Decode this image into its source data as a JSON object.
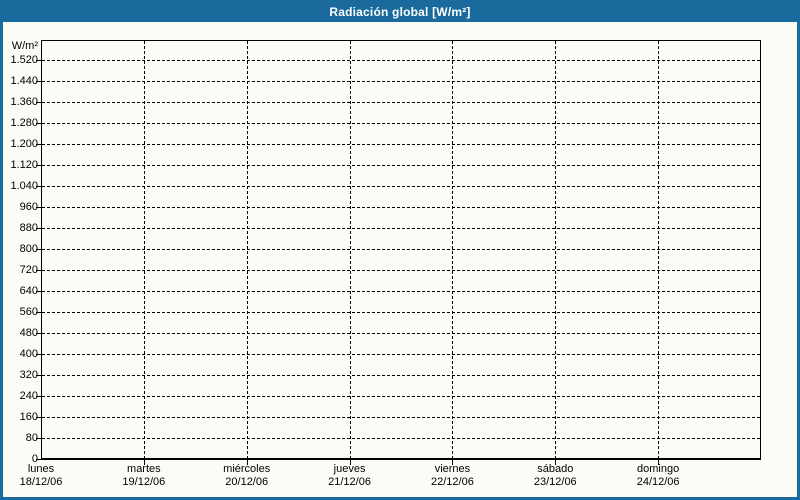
{
  "header": {
    "title": "Radiación global [W/m²]"
  },
  "colors": {
    "accent_blue": "#1B6A9D",
    "background": "#FCFCF7",
    "grid": "#000000",
    "title_text": "#FFFFFF",
    "label_text": "#000000"
  },
  "chart_data": {
    "type": "line",
    "title": "Radiación global [W/m²]",
    "y_unit": "W/m²",
    "ylabel": "W/m²",
    "xlabel": "",
    "ylim": [
      0,
      1600
    ],
    "y_tick_step": 80,
    "grid": "dashed",
    "legend": "none",
    "y_ticks": [
      {
        "value": 0,
        "label": "0"
      },
      {
        "value": 80,
        "label": "80"
      },
      {
        "value": 160,
        "label": "160"
      },
      {
        "value": 240,
        "label": "240"
      },
      {
        "value": 320,
        "label": "320"
      },
      {
        "value": 400,
        "label": "400"
      },
      {
        "value": 480,
        "label": "480"
      },
      {
        "value": 560,
        "label": "560"
      },
      {
        "value": 640,
        "label": "640"
      },
      {
        "value": 720,
        "label": "720"
      },
      {
        "value": 800,
        "label": "800"
      },
      {
        "value": 880,
        "label": "880"
      },
      {
        "value": 960,
        "label": "960"
      },
      {
        "value": 1040,
        "label": "1.040"
      },
      {
        "value": 1120,
        "label": "1.120"
      },
      {
        "value": 1200,
        "label": "1.200"
      },
      {
        "value": 1280,
        "label": "1.280"
      },
      {
        "value": 1360,
        "label": "1.360"
      },
      {
        "value": 1440,
        "label": "1.440"
      },
      {
        "value": 1520,
        "label": "1.520"
      }
    ],
    "x_categories": [
      {
        "day": "lunes",
        "date": "18/12/06"
      },
      {
        "day": "martes",
        "date": "19/12/06"
      },
      {
        "day": "miércoles",
        "date": "20/12/06"
      },
      {
        "day": "jueves",
        "date": "21/12/06"
      },
      {
        "day": "viernes",
        "date": "22/12/06"
      },
      {
        "day": "sábado",
        "date": "23/12/06"
      },
      {
        "day": "domingo",
        "date": "24/12/06"
      }
    ],
    "series": []
  }
}
